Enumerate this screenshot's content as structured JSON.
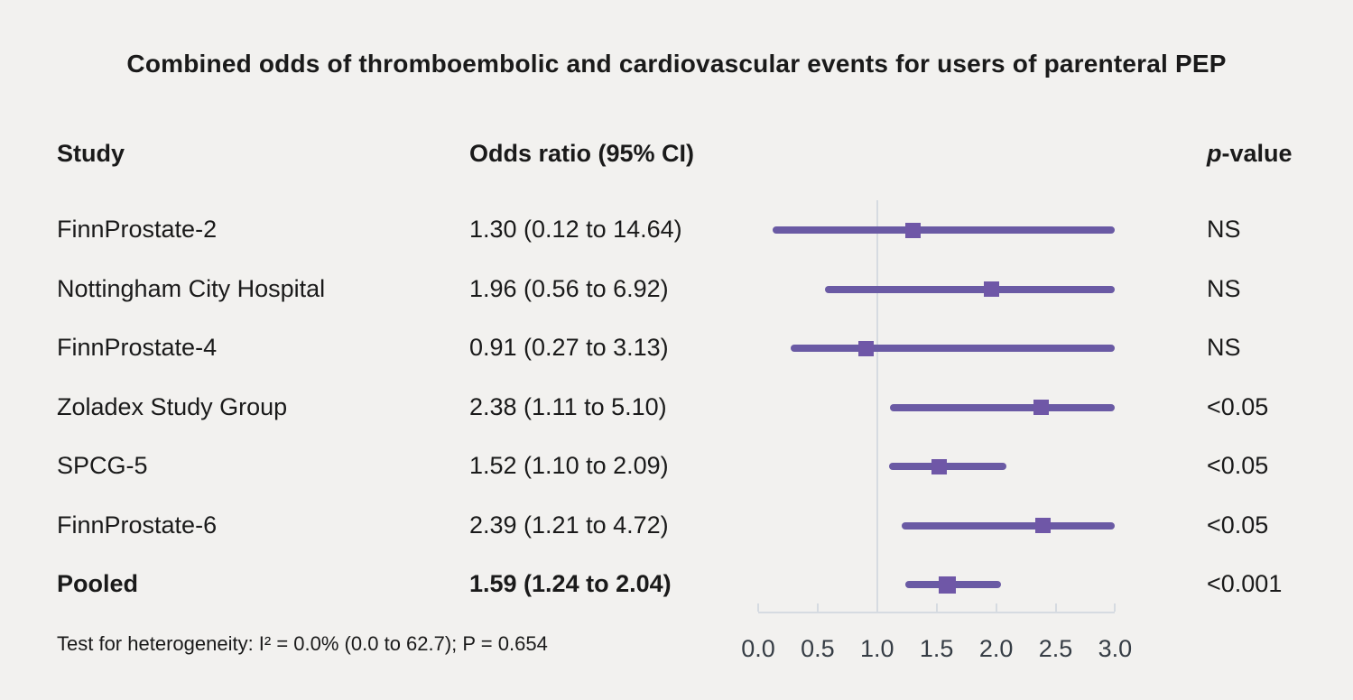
{
  "title": "Combined odds of thromboembolic and cardiovascular events for users of parenteral PEP",
  "columns": {
    "study": "Study",
    "odds": "Odds ratio (95% CI)",
    "p": "p-value"
  },
  "footer": "Test for heterogeneity: I² = 0.0% (0.0 to 62.7); P = 0.654",
  "colors": {
    "background": "#f2f1ef",
    "text": "#1a1a1a",
    "ci_line": "#6a5aa4",
    "marker": "#6f57a7",
    "axis": "#d6dbe1",
    "tick_label": "#363d45"
  },
  "chart_data": {
    "type": "forest",
    "title": "Combined odds of thromboembolic and cardiovascular events for users of parenteral PEP",
    "xlabel": "Odds ratio",
    "axis": {
      "min": 0.0,
      "max": 3.0,
      "tick_labels": [
        "0.0",
        "0.5",
        "1.0",
        "1.5",
        "2.0",
        "2.5",
        "3.0"
      ],
      "tick_values": [
        0.0,
        0.5,
        1.0,
        1.5,
        2.0,
        2.5,
        3.0
      ],
      "reference_line": 1.0,
      "clip_high_at": 3.0
    },
    "rows": [
      {
        "study": "FinnProstate-2",
        "or": 1.3,
        "ci_low": 0.12,
        "ci_high": 14.64,
        "label": "1.30 (0.12 to 14.64)",
        "p": "NS",
        "pooled": false
      },
      {
        "study": "Nottingham City Hospital",
        "or": 1.96,
        "ci_low": 0.56,
        "ci_high": 6.92,
        "label": "1.96 (0.56 to 6.92)",
        "p": "NS",
        "pooled": false
      },
      {
        "study": "FinnProstate-4",
        "or": 0.91,
        "ci_low": 0.27,
        "ci_high": 3.13,
        "label": "0.91 (0.27 to 3.13)",
        "p": "NS",
        "pooled": false
      },
      {
        "study": "Zoladex Study Group",
        "or": 2.38,
        "ci_low": 1.11,
        "ci_high": 5.1,
        "label": "2.38 (1.11 to 5.10)",
        "p": "<0.05",
        "pooled": false
      },
      {
        "study": "SPCG-5",
        "or": 1.52,
        "ci_low": 1.1,
        "ci_high": 2.09,
        "label": "1.52 (1.10 to 2.09)",
        "p": "<0.05",
        "pooled": false
      },
      {
        "study": "FinnProstate-6",
        "or": 2.39,
        "ci_low": 1.21,
        "ci_high": 4.72,
        "label": "2.39 (1.21 to 4.72)",
        "p": "<0.05",
        "pooled": false
      },
      {
        "study": "Pooled",
        "or": 1.59,
        "ci_low": 1.24,
        "ci_high": 2.04,
        "label": "1.59 (1.24 to 2.04)",
        "p": "<0.001",
        "pooled": true
      }
    ]
  }
}
